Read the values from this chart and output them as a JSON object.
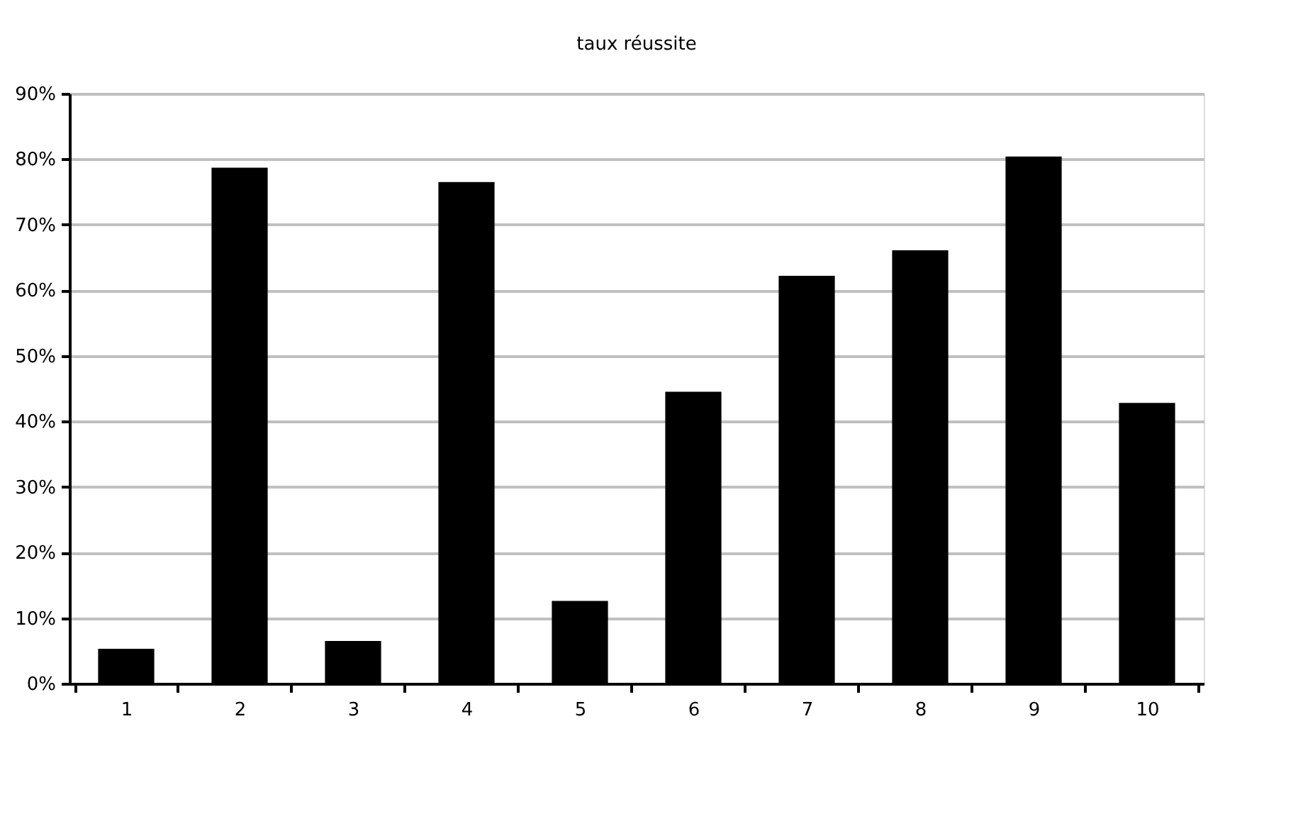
{
  "chart_data": {
    "type": "bar",
    "title": "taux réussite",
    "categories": [
      "1",
      "2",
      "3",
      "4",
      "5",
      "6",
      "7",
      "8",
      "9",
      "10"
    ],
    "values": [
      5.3,
      78.7,
      6.5,
      76.5,
      12.6,
      44.5,
      62.2,
      66.1,
      80.4,
      42.8
    ],
    "color": "#000000",
    "ylim": [
      0,
      90
    ],
    "yticks": [
      {
        "value": 0,
        "label": "0%"
      },
      {
        "value": 10,
        "label": "10%"
      },
      {
        "value": 20,
        "label": "20%"
      },
      {
        "value": 30,
        "label": "30%"
      },
      {
        "value": 40,
        "label": "40%"
      },
      {
        "value": 50,
        "label": "50%"
      },
      {
        "value": 60,
        "label": "60%"
      },
      {
        "value": 70,
        "label": "70%"
      },
      {
        "value": 80,
        "label": "80%"
      },
      {
        "value": 90,
        "label": "90%"
      }
    ],
    "grid": "y"
  }
}
